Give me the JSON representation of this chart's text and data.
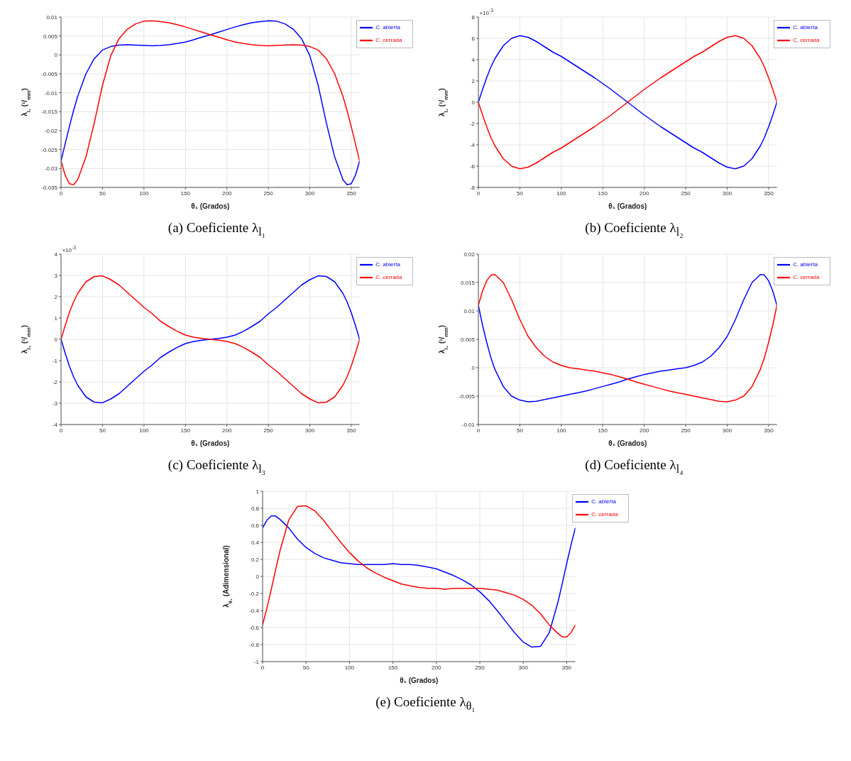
{
  "chart_data": [
    {
      "type": "line",
      "title": "(a) Coeficiente λ$_{l₁}$",
      "xlabel": "θ₁ (Grados)",
      "ylabel": "λ$_{l₁}$ (¹/$_{mm}$)",
      "x": [
        0,
        5,
        10,
        15,
        20,
        30,
        40,
        50,
        60,
        70,
        80,
        90,
        100,
        110,
        120,
        130,
        140,
        150,
        160,
        170,
        180,
        190,
        200,
        210,
        220,
        230,
        240,
        250,
        260,
        270,
        280,
        290,
        300,
        310,
        320,
        330,
        340,
        345,
        350,
        355,
        360
      ],
      "series": [
        {
          "name": "C. abierta",
          "color": "#0000ff",
          "values": [
            -0.028,
            -0.0235,
            -0.019,
            -0.0148,
            -0.011,
            -0.005,
            -0.001,
            0.0013,
            0.0022,
            0.0026,
            0.0027,
            0.0026,
            0.0025,
            0.0024,
            0.0025,
            0.0027,
            0.003,
            0.0034,
            0.004,
            0.0047,
            0.0053,
            0.006,
            0.0067,
            0.0074,
            0.008,
            0.0085,
            0.0088,
            0.009,
            0.0089,
            0.0082,
            0.0068,
            0.0043,
            -0.0002,
            -0.008,
            -0.018,
            -0.027,
            -0.033,
            -0.0343,
            -0.034,
            -0.0318,
            -0.028
          ]
        },
        {
          "name": "C. cerrada",
          "color": "#ff0000",
          "values": [
            -0.028,
            -0.0318,
            -0.034,
            -0.0343,
            -0.033,
            -0.027,
            -0.018,
            -0.008,
            -0.0002,
            0.0043,
            0.0068,
            0.0082,
            0.0089,
            0.009,
            0.0088,
            0.0085,
            0.008,
            0.0074,
            0.0067,
            0.006,
            0.0053,
            0.0047,
            0.004,
            0.0034,
            0.003,
            0.0027,
            0.0025,
            0.0024,
            0.0025,
            0.0026,
            0.0027,
            0.0026,
            0.0022,
            0.0013,
            -0.001,
            -0.005,
            -0.011,
            -0.0148,
            -0.019,
            -0.0235,
            -0.028
          ]
        }
      ],
      "xlim": [
        0,
        360
      ],
      "xticks": [
        0,
        50,
        100,
        150,
        200,
        250,
        300,
        350
      ],
      "ylim": [
        -0.035,
        0.01
      ],
      "yticks": [
        -0.035,
        -0.03,
        -0.025,
        -0.02,
        -0.015,
        -0.01,
        -0.005,
        0,
        0.005,
        0.01
      ],
      "grid": true,
      "legend": "top right"
    },
    {
      "type": "line",
      "title": "(b) Coeficiente λ$_{l₂}$",
      "xlabel": "θ₁ (Grados)",
      "ylabel": "λ$_{l₂}$ (¹/$_{mm}$)",
      "annotations": [
        "×10$^{-3}$"
      ],
      "x": [
        0,
        5,
        10,
        15,
        20,
        30,
        40,
        50,
        60,
        70,
        80,
        90,
        100,
        110,
        120,
        130,
        140,
        150,
        160,
        170,
        180,
        190,
        200,
        210,
        220,
        230,
        240,
        250,
        260,
        270,
        280,
        290,
        300,
        310,
        320,
        330,
        340,
        345,
        350,
        355,
        360
      ],
      "series": [
        {
          "name": "C. abierta",
          "color": "#0000ff",
          "values": [
            0,
            1.2,
            2.3,
            3.3,
            4.1,
            5.3,
            6.0,
            6.25,
            6.1,
            5.7,
            5.2,
            4.7,
            4.3,
            3.8,
            3.3,
            2.8,
            2.3,
            1.75,
            1.2,
            0.6,
            0,
            -0.6,
            -1.2,
            -1.75,
            -2.3,
            -2.8,
            -3.3,
            -3.8,
            -4.3,
            -4.7,
            -5.2,
            -5.7,
            -6.1,
            -6.25,
            -6.0,
            -5.3,
            -4.1,
            -3.3,
            -2.3,
            -1.2,
            0
          ]
        },
        {
          "name": "C. cerrada",
          "color": "#ff0000",
          "values": [
            0,
            -1.2,
            -2.3,
            -3.3,
            -4.1,
            -5.3,
            -6.0,
            -6.25,
            -6.1,
            -5.7,
            -5.2,
            -4.7,
            -4.3,
            -3.8,
            -3.3,
            -2.8,
            -2.3,
            -1.75,
            -1.2,
            -0.6,
            0,
            0.6,
            1.2,
            1.75,
            2.3,
            2.8,
            3.3,
            3.8,
            4.3,
            4.7,
            5.2,
            5.7,
            6.1,
            6.25,
            6.0,
            5.3,
            4.1,
            3.3,
            2.3,
            1.2,
            0
          ]
        }
      ],
      "xlim": [
        0,
        360
      ],
      "xticks": [
        0,
        50,
        100,
        150,
        200,
        250,
        300,
        350
      ],
      "ylim": [
        -8,
        8
      ],
      "yticks": [
        -8,
        -6,
        -4,
        -2,
        0,
        2,
        4,
        6,
        8
      ],
      "grid": true,
      "legend": "top right"
    },
    {
      "type": "line",
      "title": "(c) Coeficiente λ$_{l₃}$",
      "xlabel": "θ₁ (Grados)",
      "ylabel": "λ$_{l₃}$ (¹/$_{mm}$)",
      "annotations": [
        "×10$^{-3}$"
      ],
      "x": [
        0,
        5,
        10,
        15,
        20,
        30,
        40,
        50,
        60,
        70,
        80,
        90,
        100,
        110,
        120,
        130,
        140,
        150,
        160,
        170,
        180,
        190,
        200,
        210,
        220,
        230,
        240,
        250,
        260,
        270,
        280,
        290,
        300,
        310,
        320,
        330,
        340,
        345,
        350,
        355,
        360
      ],
      "series": [
        {
          "name": "C. abierta",
          "color": "#0000ff",
          "values": [
            0,
            -0.65,
            -1.25,
            -1.75,
            -2.15,
            -2.7,
            -2.95,
            -2.98,
            -2.8,
            -2.55,
            -2.2,
            -1.85,
            -1.5,
            -1.2,
            -0.85,
            -0.6,
            -0.38,
            -0.2,
            -0.1,
            -0.04,
            0,
            0.04,
            0.1,
            0.2,
            0.38,
            0.6,
            0.85,
            1.2,
            1.5,
            1.85,
            2.2,
            2.55,
            2.8,
            2.98,
            2.95,
            2.7,
            2.15,
            1.75,
            1.25,
            0.65,
            0
          ]
        },
        {
          "name": "C. cerrada",
          "color": "#ff0000",
          "values": [
            0,
            0.65,
            1.25,
            1.75,
            2.15,
            2.7,
            2.95,
            2.98,
            2.8,
            2.55,
            2.2,
            1.85,
            1.5,
            1.2,
            0.85,
            0.6,
            0.38,
            0.2,
            0.1,
            0.04,
            0,
            -0.04,
            -0.1,
            -0.2,
            -0.38,
            -0.6,
            -0.85,
            -1.2,
            -1.5,
            -1.85,
            -2.2,
            -2.55,
            -2.8,
            -2.98,
            -2.95,
            -2.7,
            -2.15,
            -1.75,
            -1.25,
            -0.65,
            0
          ]
        }
      ],
      "xlim": [
        0,
        360
      ],
      "xticks": [
        0,
        50,
        100,
        150,
        200,
        250,
        300,
        350
      ],
      "ylim": [
        -4,
        4
      ],
      "yticks": [
        -4,
        -3,
        -2,
        -1,
        0,
        1,
        2,
        3,
        4
      ],
      "grid": true,
      "legend": "top right"
    },
    {
      "type": "line",
      "title": "(d) Coeficiente λ$_{l₄}$",
      "xlabel": "θ₁ (Grados)",
      "ylabel": "λ$_{l₄}$ (¹/$_{mm}$)",
      "x": [
        0,
        5,
        10,
        15,
        20,
        30,
        40,
        50,
        60,
        70,
        80,
        90,
        100,
        110,
        120,
        130,
        140,
        150,
        160,
        170,
        180,
        190,
        200,
        210,
        220,
        230,
        240,
        250,
        260,
        270,
        280,
        290,
        300,
        310,
        320,
        330,
        340,
        345,
        350,
        355,
        360
      ],
      "series": [
        {
          "name": "C. abierta",
          "color": "#0000ff",
          "values": [
            0.011,
            0.0075,
            0.0045,
            0.0018,
            -0.0003,
            -0.0033,
            -0.005,
            -0.0057,
            -0.006,
            -0.0059,
            -0.0056,
            -0.0053,
            -0.005,
            -0.0047,
            -0.0044,
            -0.0041,
            -0.0037,
            -0.0033,
            -0.0029,
            -0.0025,
            -0.002,
            -0.0016,
            -0.0012,
            -0.0009,
            -0.0006,
            -0.0004,
            -0.0002,
            0,
            0.0004,
            0.001,
            0.002,
            0.0035,
            0.0055,
            0.0085,
            0.012,
            0.015,
            0.0164,
            0.0163,
            0.0153,
            0.0135,
            0.011
          ]
        },
        {
          "name": "C. cerrada",
          "color": "#ff0000",
          "values": [
            0.011,
            0.0135,
            0.0153,
            0.0163,
            0.0164,
            0.015,
            0.012,
            0.0085,
            0.0055,
            0.0035,
            0.002,
            0.001,
            0.0004,
            0,
            -0.0002,
            -0.0004,
            -0.0006,
            -0.0009,
            -0.0012,
            -0.0016,
            -0.002,
            -0.0025,
            -0.0029,
            -0.0033,
            -0.0037,
            -0.0041,
            -0.0044,
            -0.0047,
            -0.005,
            -0.0053,
            -0.0056,
            -0.0059,
            -0.006,
            -0.0057,
            -0.005,
            -0.0033,
            -0.0003,
            0.0018,
            0.0045,
            0.0075,
            0.011
          ]
        }
      ],
      "xlim": [
        0,
        360
      ],
      "xticks": [
        0,
        50,
        100,
        150,
        200,
        250,
        300,
        350
      ],
      "ylim": [
        -0.01,
        0.02
      ],
      "yticks": [
        -0.01,
        -0.005,
        0,
        0.005,
        0.01,
        0.015,
        0.02
      ],
      "grid": true,
      "legend": "top right"
    },
    {
      "type": "line",
      "title": "(e) Coeficiente λ$_{θ₁}$",
      "xlabel": "θ₁ (Grados)",
      "ylabel": "λ$_{θ₁}$ (Adimensional)",
      "x": [
        0,
        5,
        10,
        15,
        20,
        30,
        40,
        50,
        60,
        70,
        80,
        90,
        100,
        110,
        120,
        130,
        140,
        150,
        160,
        170,
        180,
        190,
        200,
        210,
        220,
        230,
        240,
        250,
        260,
        270,
        280,
        290,
        300,
        310,
        320,
        330,
        340,
        345,
        350,
        355,
        360
      ],
      "series": [
        {
          "name": "C. abierta",
          "color": "#0000ff",
          "values": [
            0.57,
            0.66,
            0.71,
            0.71,
            0.67,
            0.57,
            0.44,
            0.34,
            0.27,
            0.22,
            0.19,
            0.16,
            0.15,
            0.14,
            0.14,
            0.14,
            0.14,
            0.15,
            0.14,
            0.14,
            0.13,
            0.11,
            0.09,
            0.05,
            0.01,
            -0.04,
            -0.1,
            -0.18,
            -0.28,
            -0.4,
            -0.53,
            -0.66,
            -0.77,
            -0.83,
            -0.82,
            -0.66,
            -0.3,
            -0.08,
            0.15,
            0.37,
            0.57
          ]
        },
        {
          "name": "C. cerrada",
          "color": "#ff0000",
          "values": [
            -0.57,
            -0.37,
            -0.15,
            0.08,
            0.3,
            0.66,
            0.82,
            0.83,
            0.77,
            0.66,
            0.53,
            0.4,
            0.28,
            0.18,
            0.1,
            0.04,
            -0.01,
            -0.05,
            -0.09,
            -0.11,
            -0.13,
            -0.14,
            -0.14,
            -0.15,
            -0.14,
            -0.14,
            -0.14,
            -0.14,
            -0.15,
            -0.16,
            -0.19,
            -0.22,
            -0.27,
            -0.34,
            -0.44,
            -0.57,
            -0.67,
            -0.71,
            -0.71,
            -0.66,
            -0.57
          ]
        }
      ],
      "xlim": [
        0,
        360
      ],
      "xticks": [
        0,
        50,
        100,
        150,
        200,
        250,
        300,
        350
      ],
      "ylim": [
        -1,
        1
      ],
      "yticks": [
        -1,
        -0.8,
        -0.6,
        -0.4,
        -0.2,
        0,
        0.2,
        0.4,
        0.6,
        0.8,
        1
      ],
      "grid": true,
      "legend": "top right"
    }
  ]
}
